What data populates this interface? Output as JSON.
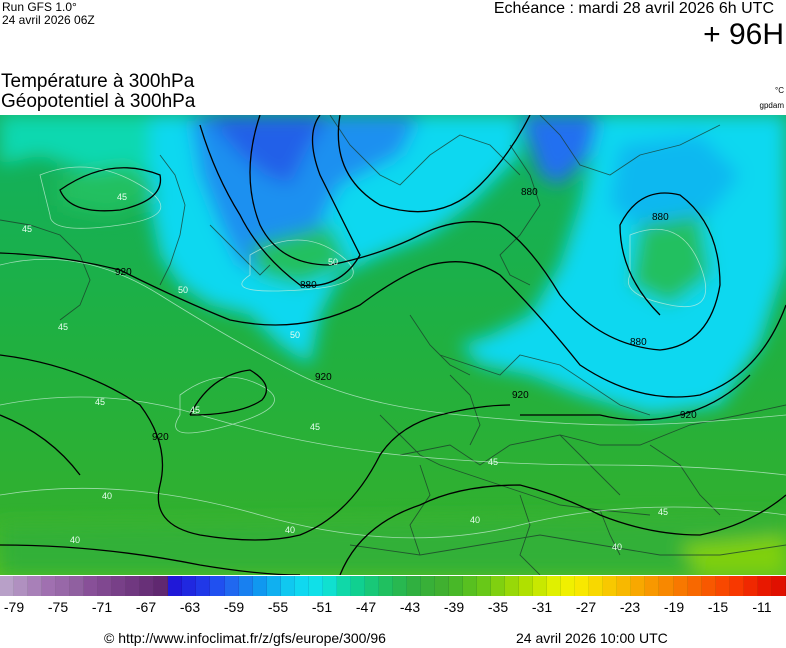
{
  "header": {
    "run": "Run GFS 1.0°",
    "run_date": "24 avril 2026 06Z",
    "valid": "Echéance : mardi 28 avril 2026 6h UTC",
    "lead": "+ 96H"
  },
  "titles": {
    "line1": "Température à 300hPa",
    "line2": "Géopotentiel à 300hPa",
    "unit_temp": "°C",
    "unit_geo": "gpdam"
  },
  "map": {
    "contour_labels": [
      "880",
      "880",
      "880",
      "880",
      "920",
      "920",
      "920",
      "920",
      "920"
    ],
    "temp_labels": [
      "45",
      "45",
      "45",
      "45",
      "45",
      "45",
      "45",
      "45",
      "40",
      "40",
      "40",
      "40",
      "40",
      "50",
      "50",
      "50"
    ]
  },
  "colorbar": {
    "ticks": [
      "-79",
      "-75",
      "-71",
      "-67",
      "-63",
      "-59",
      "-55",
      "-51",
      "-47",
      "-43",
      "-39",
      "-35",
      "-31",
      "-27",
      "-23",
      "-19",
      "-15",
      "-11"
    ],
    "colors": [
      "#b8a0c8",
      "#b090c0",
      "#a880b8",
      "#a070b0",
      "#9868a8",
      "#9060a0",
      "#885098",
      "#804890",
      "#784088",
      "#703880",
      "#683078",
      "#602870",
      "#2018d8",
      "#2028e0",
      "#2038e8",
      "#2050f0",
      "#2068f0",
      "#1880f0",
      "#1098f0",
      "#10b0f0",
      "#10c8f0",
      "#10d8f0",
      "#10e0e8",
      "#10e0d0",
      "#10d8a8",
      "#10d090",
      "#18c878",
      "#20c060",
      "#28b850",
      "#30b040",
      "#38b038",
      "#40b030",
      "#48b828",
      "#58c020",
      "#68c818",
      "#80d010",
      "#98d808",
      "#b0e000",
      "#c8e800",
      "#e0f000",
      "#f0f000",
      "#f8e800",
      "#f8d800",
      "#f8c800",
      "#f8b800",
      "#f8a800",
      "#f89800",
      "#f88800",
      "#f87800",
      "#f86800",
      "#f85800",
      "#f84800",
      "#f83800",
      "#f02800",
      "#e81800",
      "#e01000"
    ]
  },
  "footer": {
    "url": "© http://www.infoclimat.fr/z/gfs/europe/300/96",
    "date": "24 avril 2026 10:00 UTC"
  }
}
